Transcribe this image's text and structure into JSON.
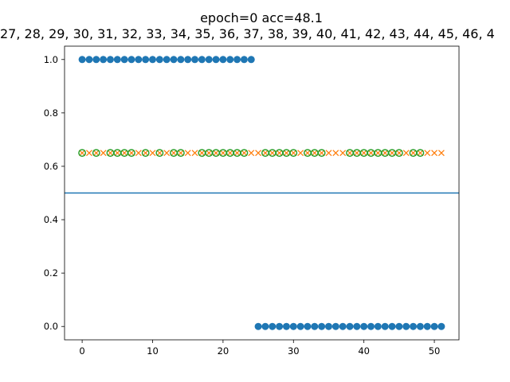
{
  "chart_data": {
    "type": "scatter",
    "title": "epoch=0 acc=48.1",
    "subtitle": "27, 28, 29, 30, 31, 32, 33, 34, 35, 36, 37, 38, 39, 40, 41, 42, 43, 44, 45, 46, 4",
    "xlabel": "",
    "ylabel": "",
    "xlim": [
      -2.5,
      53.5
    ],
    "ylim": [
      -0.05,
      1.05
    ],
    "xticks": [
      0,
      10,
      20,
      30,
      40,
      50
    ],
    "xtick_labels": [
      "0",
      "10",
      "20",
      "30",
      "40",
      "50"
    ],
    "yticks": [
      0.0,
      0.2,
      0.4,
      0.6,
      0.8,
      1.0
    ],
    "ytick_labels": [
      "0.0",
      "0.2",
      "0.4",
      "0.6",
      "0.8",
      "1.0"
    ],
    "grid": false,
    "hline": {
      "y": 0.5,
      "color": "#1f77b4"
    },
    "series": [
      {
        "marker": "circle-filled",
        "color": "#1f77b4",
        "x": [
          0,
          1,
          2,
          3,
          4,
          5,
          6,
          7,
          8,
          9,
          10,
          11,
          12,
          13,
          14,
          15,
          16,
          17,
          18,
          19,
          20,
          21,
          22,
          23,
          24,
          25,
          26,
          27,
          28,
          29,
          30,
          31,
          32,
          33,
          34,
          35,
          36,
          37,
          38,
          39,
          40,
          41,
          42,
          43,
          44,
          45,
          46,
          47,
          48,
          49,
          50,
          51
        ],
        "y": [
          1,
          1,
          1,
          1,
          1,
          1,
          1,
          1,
          1,
          1,
          1,
          1,
          1,
          1,
          1,
          1,
          1,
          1,
          1,
          1,
          1,
          1,
          1,
          1,
          1,
          0,
          0,
          0,
          0,
          0,
          0,
          0,
          0,
          0,
          0,
          0,
          0,
          0,
          0,
          0,
          0,
          0,
          0,
          0,
          0,
          0,
          0,
          0,
          0,
          0,
          0,
          0
        ]
      },
      {
        "marker": "x",
        "color": "#ff7f0e",
        "x": [
          0,
          1,
          2,
          3,
          4,
          5,
          6,
          7,
          8,
          9,
          10,
          11,
          12,
          13,
          14,
          15,
          16,
          17,
          18,
          19,
          20,
          21,
          22,
          23,
          24,
          25,
          26,
          27,
          28,
          29,
          30,
          31,
          32,
          33,
          34,
          35,
          36,
          37,
          38,
          39,
          40,
          41,
          42,
          43,
          44,
          45,
          46,
          47,
          48,
          49,
          50,
          51
        ],
        "y_const": 0.65
      },
      {
        "marker": "circle-open",
        "color": "#2ca02c",
        "x": [
          0,
          2,
          4,
          5,
          6,
          7,
          9,
          11,
          13,
          14,
          17,
          18,
          19,
          20,
          21,
          22,
          23,
          26,
          27,
          28,
          29,
          30,
          32,
          33,
          34,
          38,
          39,
          40,
          41,
          42,
          43,
          44,
          45,
          47,
          48
        ],
        "y_const": 0.65
      }
    ]
  }
}
